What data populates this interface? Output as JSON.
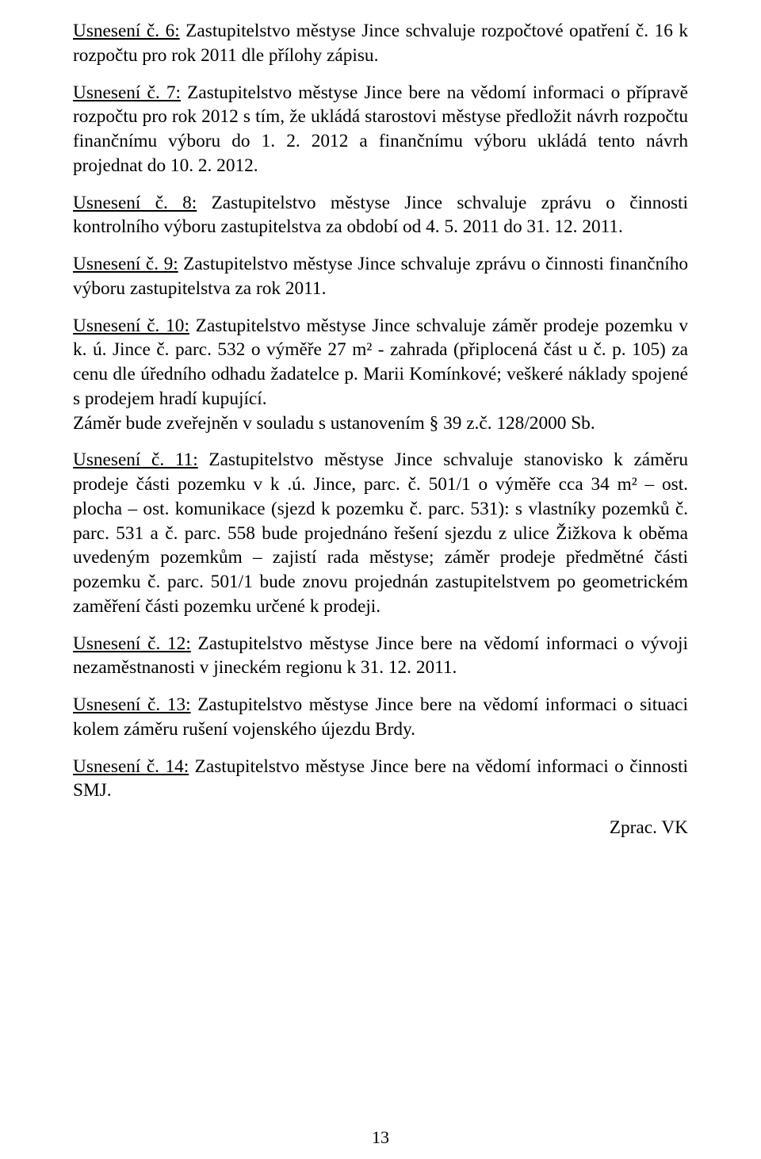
{
  "paragraphs": [
    {
      "title": "Usnesení č. 6:",
      "body": " Zastupitelstvo městyse Jince schvaluje rozpočtové opatření č. 16 k rozpočtu pro rok 2011 dle přílohy zápisu."
    },
    {
      "title": "Usnesení č. 7:",
      "body": " Zastupitelstvo městyse Jince bere na vědomí informaci o přípravě rozpočtu pro rok 2012 s tím, že ukládá starostovi městyse předložit návrh rozpočtu finančnímu výboru do 1. 2. 2012 a finančnímu výboru ukládá tento návrh projednat do 10. 2. 2012."
    },
    {
      "title": "Usnesení č. 8:",
      "body": " Zastupitelstvo městyse Jince schvaluje zprávu o činnosti kontrolního výboru zastupitelstva za období od 4. 5. 2011 do 31. 12. 2011."
    },
    {
      "title": "Usnesení č. 9:",
      "body": " Zastupitelstvo městyse Jince schvaluje zprávu o činnosti finančního výboru zastupitelstva za rok 2011."
    },
    {
      "title": "Usnesení č. 10:",
      "body": " Zastupitelstvo městyse Jince schvaluje záměr prodeje pozemku v k. ú. Jince č. parc. 532 o výměře 27 m² - zahrada (připlocená část u č. p. 105) za cenu dle úředního odhadu žadatelce p. Marii Komínkové; veškeré náklady spojené s prodejem hradí kupující.\nZáměr bude zveřejněn v souladu s ustanovením § 39 z.č. 128/2000 Sb."
    },
    {
      "title": "Usnesení č. 11:",
      "body": " Zastupitelstvo městyse Jince schvaluje stanovisko k záměru prodeje části pozemku v k .ú. Jince, parc. č. 501/1 o výměře cca 34 m² – ost. plocha – ost. komunikace (sjezd k pozemku č. parc. 531): s vlastníky pozemků č. parc. 531 a č. parc. 558 bude projednáno řešení sjezdu z ulice Žižkova k oběma uvedeným pozemkům – zajistí rada městyse; záměr prodeje předmětné části pozemku č. parc. 501/1 bude znovu projednán zastupitelstvem  po geometrickém zaměření části pozemku určené k prodeji."
    },
    {
      "title": "Usnesení č. 12:",
      "body": " Zastupitelstvo městyse Jince bere na vědomí informaci o vývoji nezaměstnanosti v jineckém regionu k 31. 12. 2011."
    },
    {
      "title": "Usnesení č. 13:",
      "body": "  Zastupitelstvo městyse Jince bere na vědomí informaci o situaci kolem záměru rušení vojenského újezdu Brdy."
    },
    {
      "title": "Usnesení č. 14:",
      "body": " Zastupitelstvo městyse Jince bere na vědomí informaci o činnosti SMJ."
    }
  ],
  "footer": "Zprac. VK",
  "page_number": "13"
}
